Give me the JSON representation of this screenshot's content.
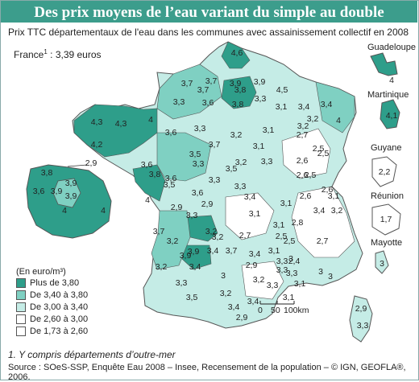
{
  "title": "Des prix moyens de l’eau variant du simple au double",
  "subtitle": "Prix TTC départementaux de l'eau dans les communes avec assainissement collectif en 2008",
  "france": {
    "label": "France",
    "sup": "1",
    "value": " : 3,39 euros"
  },
  "colors": {
    "c1": "#2e9e8a",
    "c2": "#7fd0c2",
    "c3": "#c5ece6",
    "c4": "#ffffff",
    "c5": "#ffffff",
    "title_bar": "#3c9d8c"
  },
  "legend": {
    "title": "(En euro/m³)",
    "items": [
      {
        "label": "Plus de 3,80",
        "color": "#2e9e8a"
      },
      {
        "label": "De 3,40 à 3,80",
        "color": "#7fd0c2"
      },
      {
        "label": "De 3,00 à 3,40",
        "color": "#c5ece6"
      },
      {
        "label": "De 2,60 à 3,00",
        "color": "#ffffff"
      },
      {
        "label": "De 1,73 à 2,60",
        "color": "#ffffff"
      }
    ]
  },
  "scale": {
    "t0": "0",
    "t1": "50",
    "t2": "100km"
  },
  "outremer": {
    "guadeloupe": {
      "name": "Guadeloupe",
      "value": "4"
    },
    "martinique": {
      "name": "Martinique",
      "value": "4,1"
    },
    "guyane": {
      "name": "Guyane",
      "value": "2,2"
    },
    "reunion": {
      "name": "Réunion",
      "value": "1,7"
    },
    "mayotte": {
      "name": "Mayotte",
      "value": "3"
    }
  },
  "idf_inset": [
    "2,9",
    "3,8",
    "3,9",
    "3,9",
    "3,6",
    "3,9",
    "4",
    "4"
  ],
  "corse": [
    "2,9",
    "3,3"
  ],
  "dept_values": [
    "4,6",
    "3,7",
    "3,7",
    "3,9",
    "4,5",
    "3,3",
    "3,6",
    "3,8",
    "3,3",
    "4,3",
    "4,3",
    "4",
    "3,6",
    "3,3",
    "3,1",
    "3,4",
    "3,5",
    "3,4",
    "3,2",
    "3,1",
    "2,7",
    "3,1",
    "2,5",
    "3,3",
    "3,6",
    "3,5",
    "4",
    "3,6",
    "3,3",
    "3,2",
    "3,3",
    "3,3",
    "2,6",
    "2,9",
    "3,6",
    "3,7",
    "4",
    "3,4",
    "3,3",
    "2,5",
    "3,5",
    "2,6",
    "2,9",
    "3,1",
    "3,1",
    "3,2",
    "2,7",
    "3,1",
    "2,5",
    "2,8",
    "3,4",
    "3,2",
    "3,9",
    "3,4",
    "3",
    "2,9",
    "3,2",
    "2,5",
    "2,4",
    "2,7",
    "3,1",
    "3,2",
    "2,6",
    "2,6",
    "2,5",
    "3",
    "3",
    "3",
    "3,1",
    "3,3",
    "3,4",
    "3,7",
    "3,4",
    "3,2",
    "3,3",
    "3,5",
    "3,2",
    "3,4",
    "2,9",
    "3,4",
    "3,9",
    "3,3",
    "3,3",
    "3,1",
    "3,8",
    "3,2",
    "3,2",
    "3,1",
    "3,7",
    "3,9",
    "3,7",
    "3,8",
    "4,2",
    "3,3",
    "3,2"
  ],
  "footnote": "1. Y compris départements d’outre-mer",
  "source": "Source : SOeS-SSP, Enquête Eau 2008 – Insee, Recensement de la population – © IGN, GEOFLA®, 2006."
}
